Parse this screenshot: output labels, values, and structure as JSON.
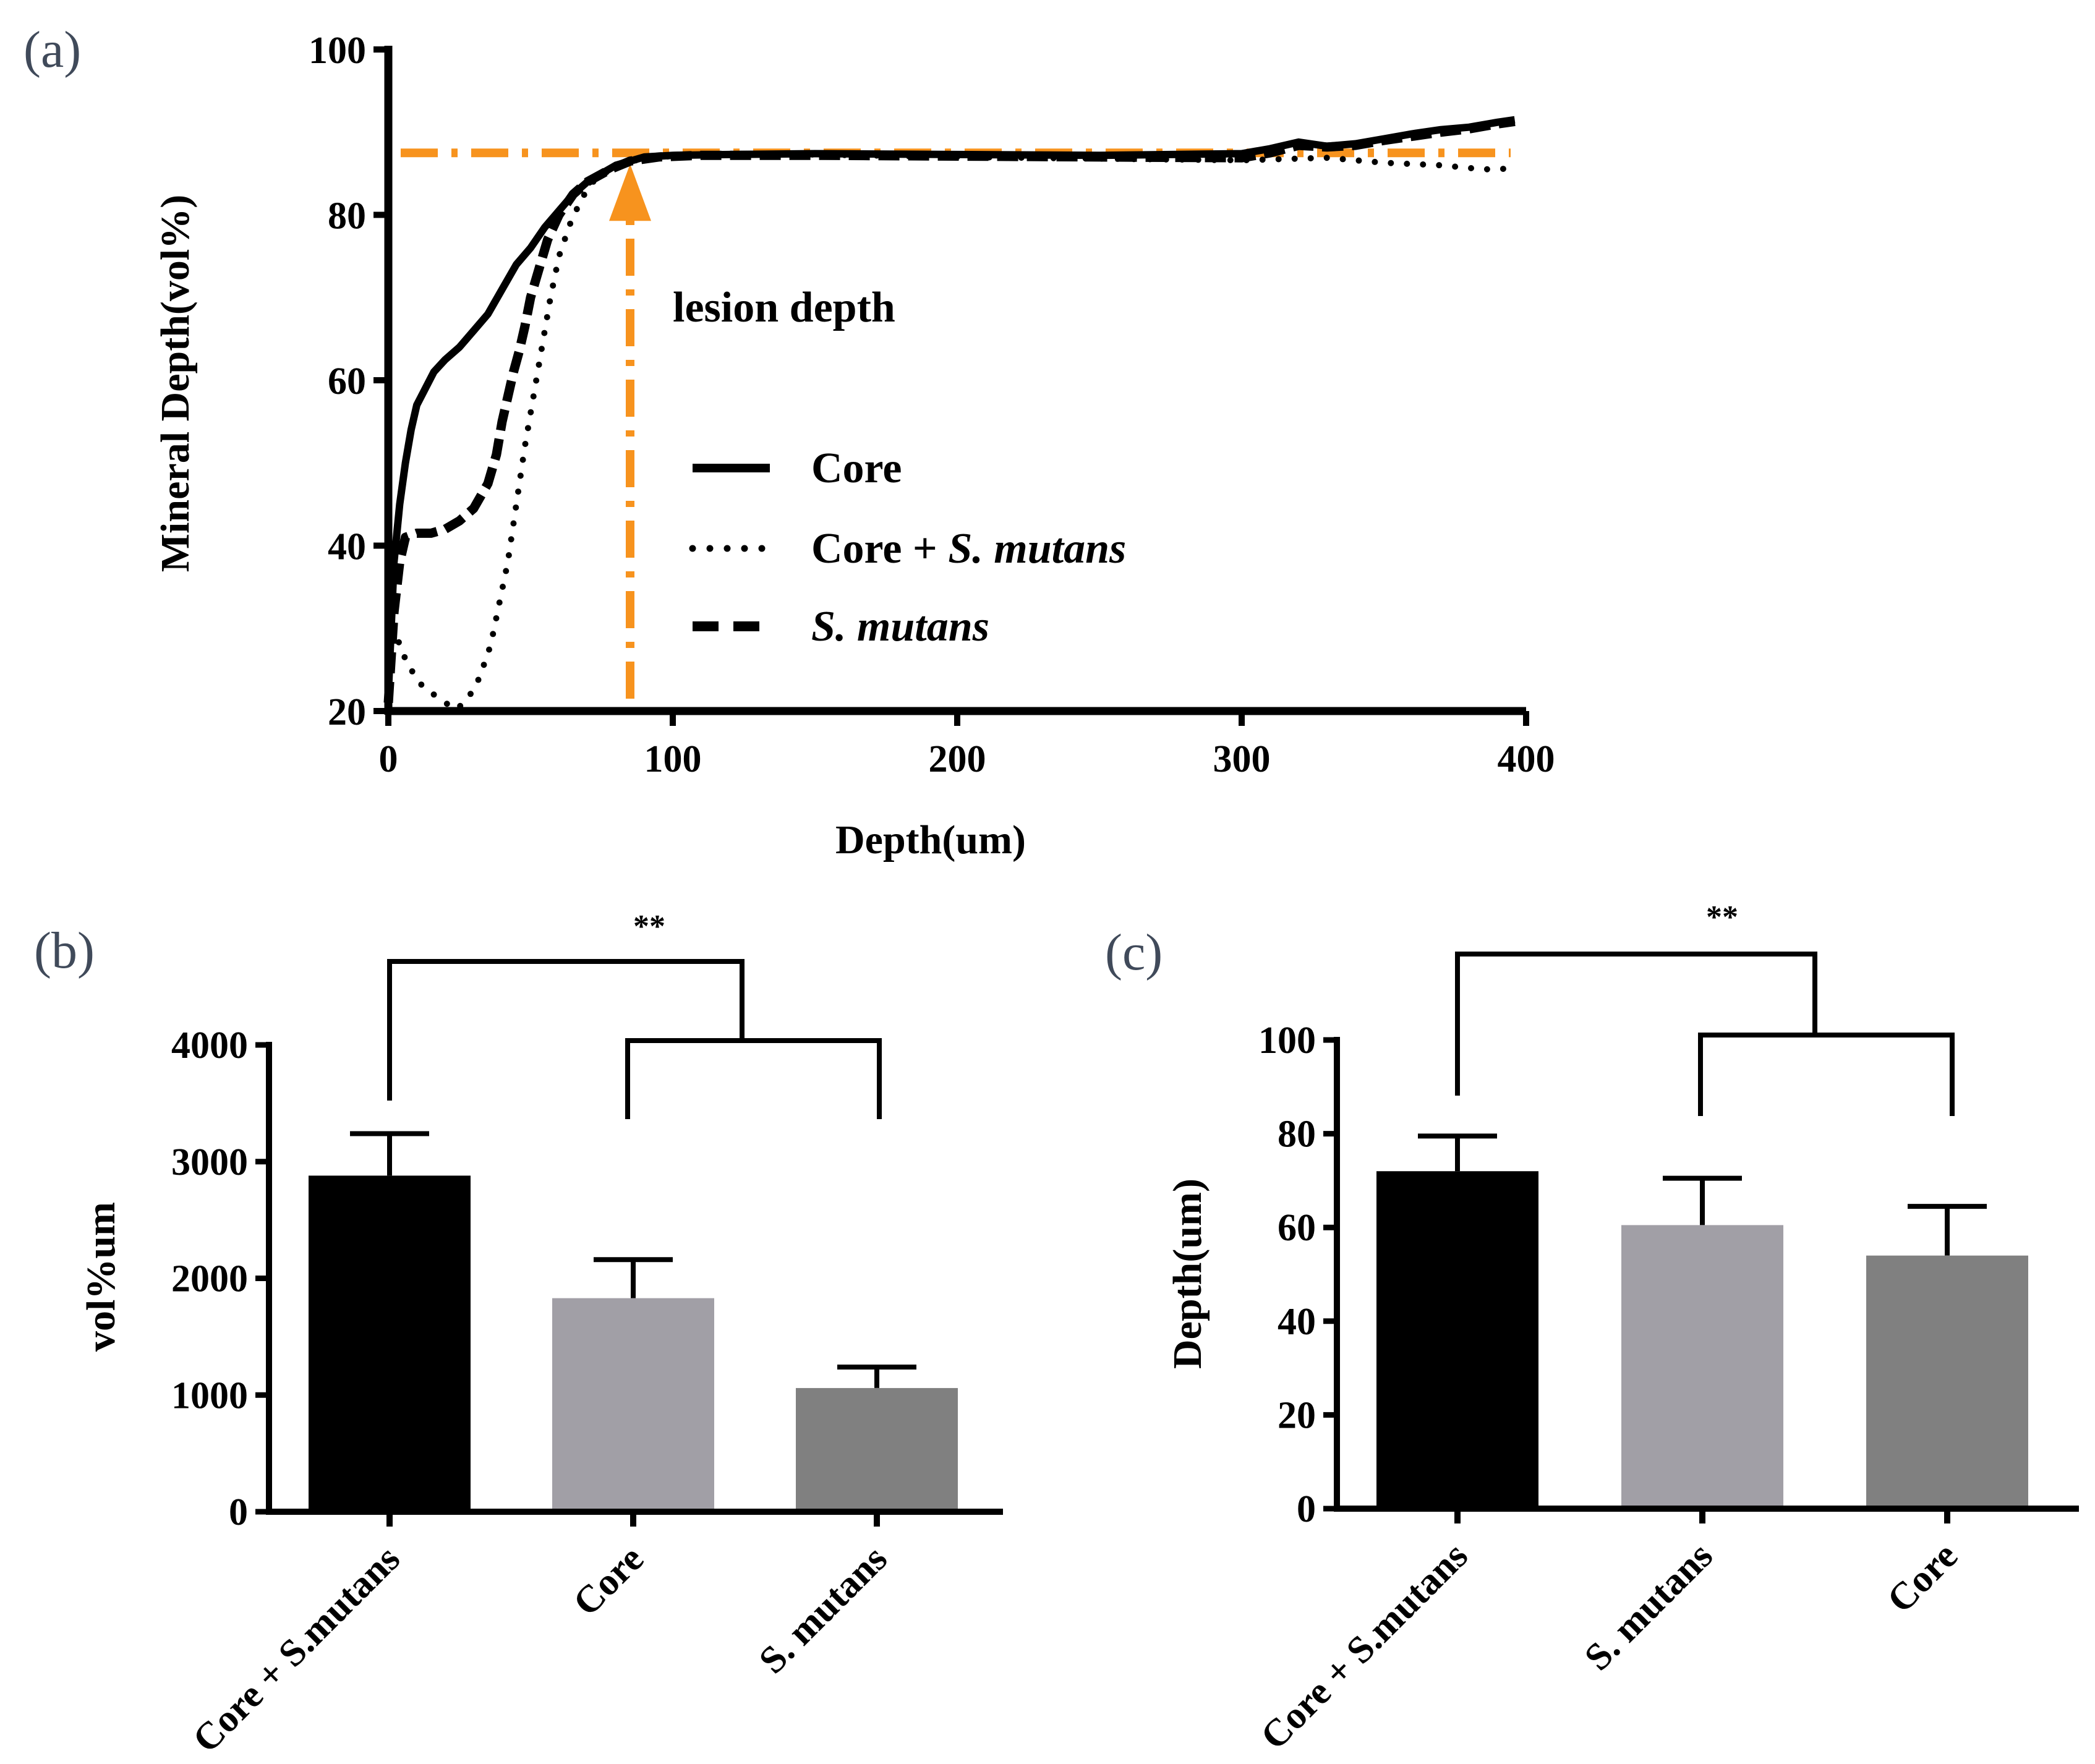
{
  "panels": {
    "a": "(a)",
    "b": "(b)",
    "c": "(c)"
  },
  "chart_data": [
    {
      "panel": "(a)",
      "type": "line",
      "xlabel": "Depth(um)",
      "ylabel": "Mineral Depth(vol%)",
      "xlim": [
        0,
        400
      ],
      "ylim": [
        20,
        100
      ],
      "x_ticks": [
        "0",
        "100",
        "200",
        "300",
        "400"
      ],
      "y_ticks": [
        "20",
        "40",
        "60",
        "80",
        "100"
      ],
      "legend_position": "center",
      "annotation": "lesion depth",
      "reference": {
        "level_y": 87.5,
        "lesion_depth_x": 85,
        "color": "#f7931e"
      },
      "series": [
        {
          "name": "Core",
          "style": "solid",
          "points": [
            [
              0,
              22
            ],
            [
              1,
              30
            ],
            [
              2,
              38
            ],
            [
              4,
              45
            ],
            [
              6,
              50
            ],
            [
              8,
              54
            ],
            [
              10,
              57
            ],
            [
              13,
              59
            ],
            [
              16,
              61
            ],
            [
              20,
              62.5
            ],
            [
              25,
              64
            ],
            [
              30,
              66
            ],
            [
              35,
              68
            ],
            [
              40,
              71
            ],
            [
              45,
              74
            ],
            [
              50,
              76
            ],
            [
              55,
              78.5
            ],
            [
              60,
              80.5
            ],
            [
              65,
              82.5
            ],
            [
              70,
              84
            ],
            [
              75,
              85
            ],
            [
              80,
              86
            ],
            [
              90,
              87
            ],
            [
              100,
              87.2
            ],
            [
              120,
              87.3
            ],
            [
              150,
              87.4
            ],
            [
              200,
              87.3
            ],
            [
              250,
              87.2
            ],
            [
              300,
              87.4
            ],
            [
              310,
              88
            ],
            [
              320,
              88.8
            ],
            [
              330,
              88.3
            ],
            [
              340,
              88.6
            ],
            [
              350,
              89.2
            ],
            [
              360,
              89.8
            ],
            [
              370,
              90.3
            ],
            [
              380,
              90.6
            ],
            [
              390,
              91.2
            ],
            [
              396,
              91.5
            ]
          ]
        },
        {
          "name": "Core + S. mutans",
          "style": "dotted",
          "points": [
            [
              0,
              34
            ],
            [
              2,
              30
            ],
            [
              5,
              27
            ],
            [
              8,
              25
            ],
            [
              12,
              23
            ],
            [
              16,
              22
            ],
            [
              20,
              21
            ],
            [
              24,
              20.2
            ],
            [
              28,
              21.5
            ],
            [
              32,
              24
            ],
            [
              36,
              28
            ],
            [
              39,
              33
            ],
            [
              42,
              38
            ],
            [
              45,
              45
            ],
            [
              48,
              52
            ],
            [
              51,
              58
            ],
            [
              54,
              64
            ],
            [
              57,
              70
            ],
            [
              60,
              75
            ],
            [
              64,
              79
            ],
            [
              68,
              82
            ],
            [
              72,
              84
            ],
            [
              78,
              85.5
            ],
            [
              85,
              86.5
            ],
            [
              95,
              87
            ],
            [
              110,
              87.3
            ],
            [
              150,
              87.3
            ],
            [
              200,
              87
            ],
            [
              250,
              86.8
            ],
            [
              300,
              86.6
            ],
            [
              330,
              86.9
            ],
            [
              350,
              86.3
            ],
            [
              370,
              86
            ],
            [
              385,
              85.5
            ],
            [
              396,
              85.6
            ]
          ]
        },
        {
          "name": "S. mutans",
          "style": "dashed",
          "points": [
            [
              0,
              21
            ],
            [
              2,
              32
            ],
            [
              4,
              38
            ],
            [
              6,
              41
            ],
            [
              10,
              41.5
            ],
            [
              15,
              41.5
            ],
            [
              20,
              42
            ],
            [
              25,
              43
            ],
            [
              30,
              44.5
            ],
            [
              35,
              47.5
            ],
            [
              38,
              51
            ],
            [
              40,
              55
            ],
            [
              42,
              58
            ],
            [
              44,
              61
            ],
            [
              46,
              63.5
            ],
            [
              48,
              66.5
            ],
            [
              50,
              70
            ],
            [
              53,
              73.5
            ],
            [
              56,
              77
            ],
            [
              60,
              80
            ],
            [
              65,
              82.5
            ],
            [
              70,
              84
            ],
            [
              78,
              85.5
            ],
            [
              85,
              86.5
            ],
            [
              95,
              87
            ],
            [
              110,
              87.2
            ],
            [
              150,
              87.2
            ],
            [
              200,
              87.1
            ],
            [
              250,
              87
            ],
            [
              300,
              86.9
            ],
            [
              310,
              87.5
            ],
            [
              320,
              88.4
            ],
            [
              330,
              88.2
            ],
            [
              340,
              88.4
            ],
            [
              350,
              89
            ],
            [
              360,
              89.5
            ],
            [
              370,
              90
            ],
            [
              380,
              90.4
            ],
            [
              390,
              91
            ],
            [
              396,
              91.3
            ]
          ]
        }
      ]
    },
    {
      "panel": "(b)",
      "type": "bar",
      "ylabel": "vol%um",
      "ylim": [
        0,
        4000
      ],
      "y_ticks": [
        "0",
        "1000",
        "2000",
        "3000",
        "4000"
      ],
      "categories": [
        "Core + S.mutans",
        "Core",
        "S. mutans"
      ],
      "values": [
        2880,
        1830,
        1060
      ],
      "errors": [
        360,
        330,
        180
      ],
      "bar_colors": [
        "#000000",
        "#a19fa6",
        "#808080"
      ],
      "significance": "**"
    },
    {
      "panel": "(c)",
      "type": "bar",
      "ylabel": "Depth(um)",
      "ylim": [
        0,
        100
      ],
      "y_ticks": [
        "0",
        "20",
        "40",
        "60",
        "80",
        "100"
      ],
      "categories": [
        "Core + S.mutans",
        "S. mutans",
        "Core"
      ],
      "values": [
        72,
        60.5,
        54
      ],
      "errors": [
        7.5,
        10,
        10.5
      ],
      "bar_colors": [
        "#000000",
        "#a19fa6",
        "#808080"
      ],
      "significance": "**"
    }
  ]
}
